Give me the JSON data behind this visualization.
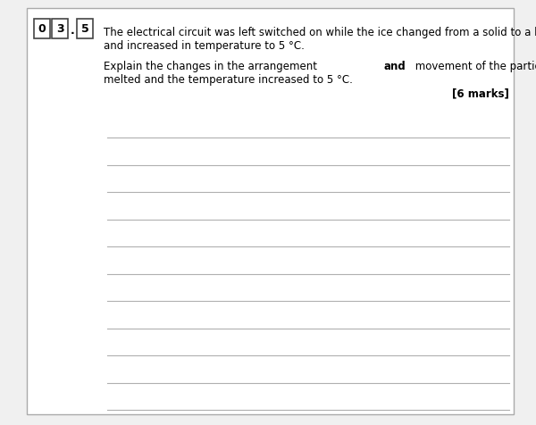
{
  "bg_color": "#f0f0f0",
  "inner_bg": "#ffffff",
  "border_color": "#aaaaaa",
  "question_number": [
    "0",
    "3",
    "5"
  ],
  "question_dot": ".",
  "body_text_line1": "The electrical circuit was left switched on while the ice changed from a solid to a liquid",
  "body_text_line2": "and increased in temperature to 5 °C.",
  "instruction_line1_normal1": "Explain the changes in the arrangement ",
  "instruction_line1_bold": "and",
  "instruction_line1_normal2": " movement of the particles as the ice",
  "instruction_line2": "melted and the temperature increased to 5 °C.",
  "marks_text": "[6 marks]",
  "num_answer_lines": 11,
  "line_color": "#b0b0b0",
  "font_size_body": 8.5,
  "font_size_marks": 8.5,
  "box_border_color": "#444444",
  "text_color": "#000000"
}
